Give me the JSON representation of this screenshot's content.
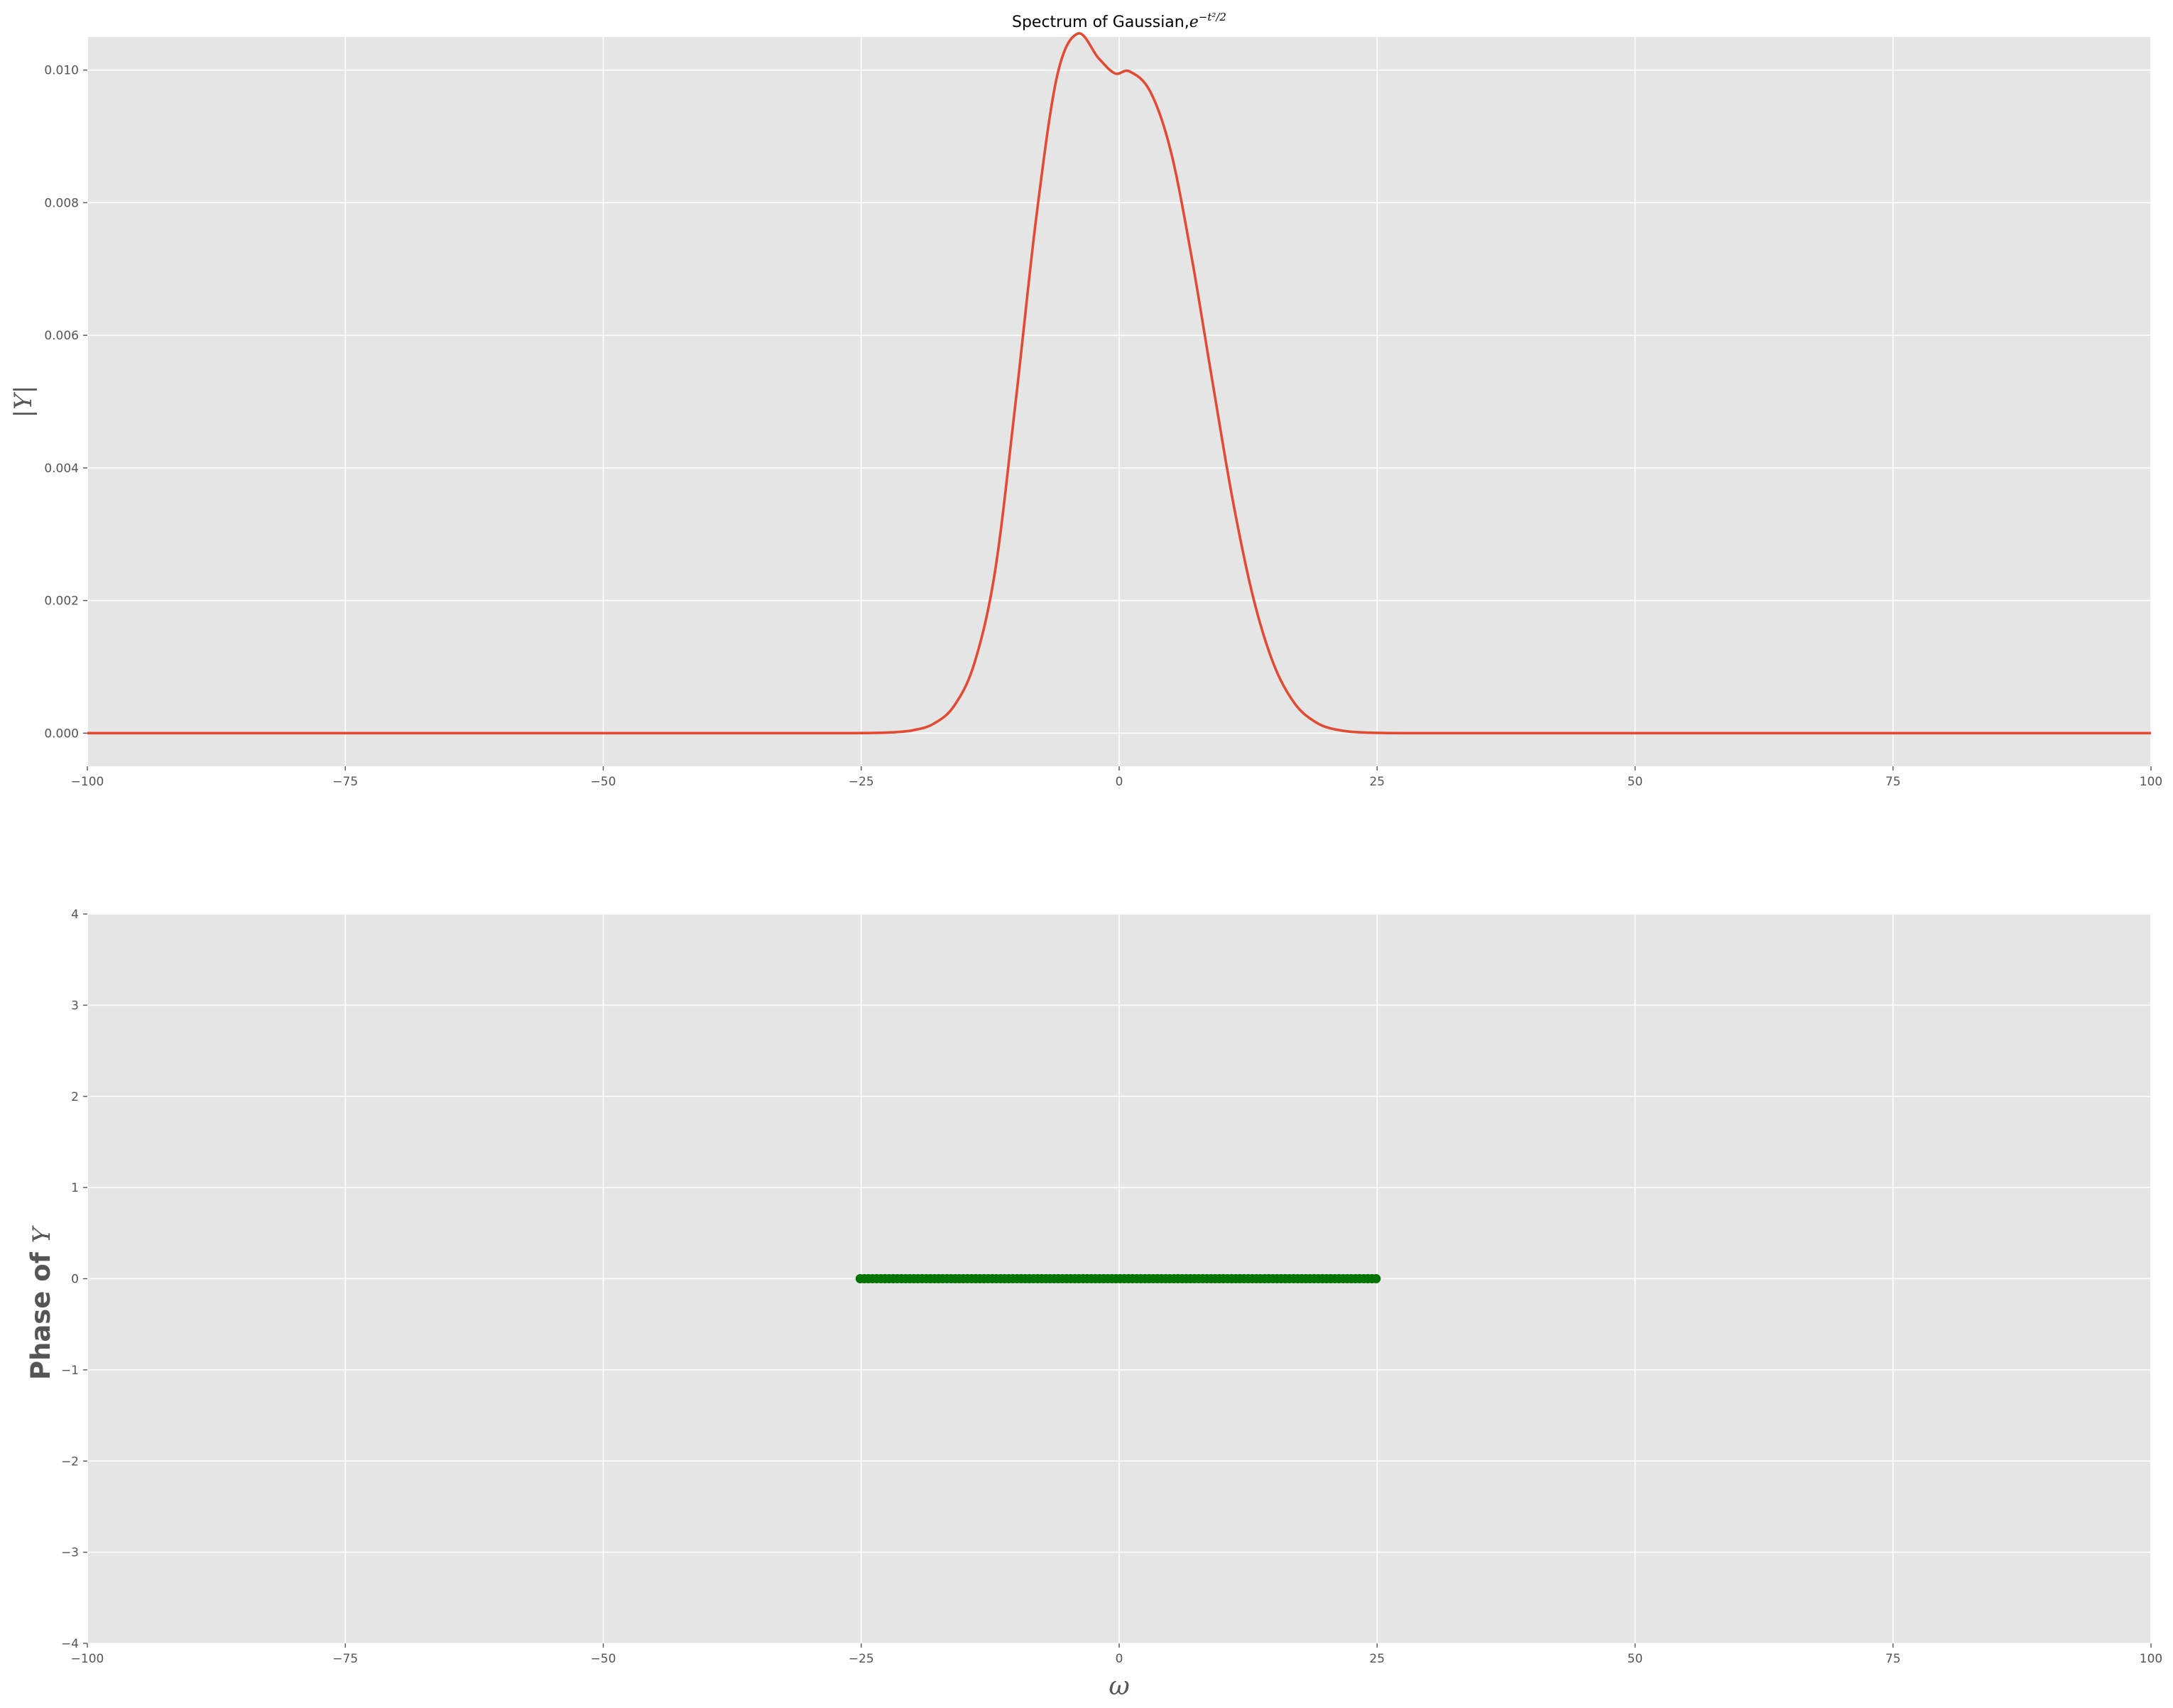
{
  "chart_data": [
    {
      "type": "line",
      "title_prefix": "Spectrum of Gaussian,",
      "title_math_base": "e",
      "title_math_exponent": "−t²/2",
      "ylabel": "|Y|",
      "xlabel": "",
      "xlim": [
        -100,
        100
      ],
      "ylim": [
        -0.0005,
        0.0105
      ],
      "xticks": [
        -100,
        -75,
        -50,
        -25,
        0,
        25,
        50,
        75,
        100
      ],
      "xtick_labels": [
        "−100",
        "−75",
        "−50",
        "−25",
        "0",
        "25",
        "50",
        "75",
        "100"
      ],
      "yticks": [
        0.0,
        0.002,
        0.004,
        0.006,
        0.008,
        0.01
      ],
      "ytick_labels": [
        "0.000",
        "0.002",
        "0.004",
        "0.006",
        "0.008",
        "0.010"
      ],
      "grid": true,
      "series": [
        {
          "color": "#e24a33",
          "style": "line",
          "x": [
            -100,
            -75,
            -50,
            -30,
            -25,
            -22,
            -20,
            -18,
            -16,
            -14,
            -12,
            -10,
            -8,
            -6,
            -4,
            -2,
            -0.4,
            1,
            3,
            5,
            7,
            9,
            11,
            13,
            15,
            17,
            19,
            21,
            24,
            30,
            50,
            75,
            100
          ],
          "y": [
            0,
            0,
            0,
            0,
            1e-06,
            1.2e-05,
            4.3e-05,
            0.00014,
            0.00041,
            0.00107,
            0.00247,
            0.00504,
            0.00782,
            0.00992,
            0.01055,
            0.01018,
            0.00995,
            0.00998,
            0.00968,
            0.00878,
            0.0072,
            0.00534,
            0.00352,
            0.00204,
            0.00103,
            0.00045,
            0.00017,
            5.4e-05,
            8e-06,
            0,
            0,
            0,
            0
          ]
        }
      ]
    },
    {
      "type": "scatter",
      "xlabel": "ω",
      "ylabel_prefix": "Phase of ",
      "ylabel_math": "Y",
      "xlim": [
        -100,
        100
      ],
      "ylim": [
        -4,
        4
      ],
      "xticks": [
        -100,
        -75,
        -50,
        -25,
        0,
        25,
        50,
        75,
        100
      ],
      "xtick_labels": [
        "−100",
        "−75",
        "−50",
        "−25",
        "0",
        "25",
        "50",
        "75",
        "100"
      ],
      "yticks": [
        -4,
        -3,
        -2,
        -1,
        0,
        1,
        2,
        3,
        4
      ],
      "ytick_labels": [
        "−4",
        "−3",
        "−2",
        "−1",
        "0",
        "1",
        "2",
        "3",
        "4"
      ],
      "grid": true,
      "series": [
        {
          "color": "#007300",
          "style": "markers",
          "x_start": -25.1,
          "x_end": 24.9,
          "x_step": 0.4,
          "y_value": 0
        }
      ]
    }
  ],
  "colors": {
    "axes_background": "#e5e5e5",
    "grid": "#ffffff",
    "figure_background": "#ffffff"
  }
}
